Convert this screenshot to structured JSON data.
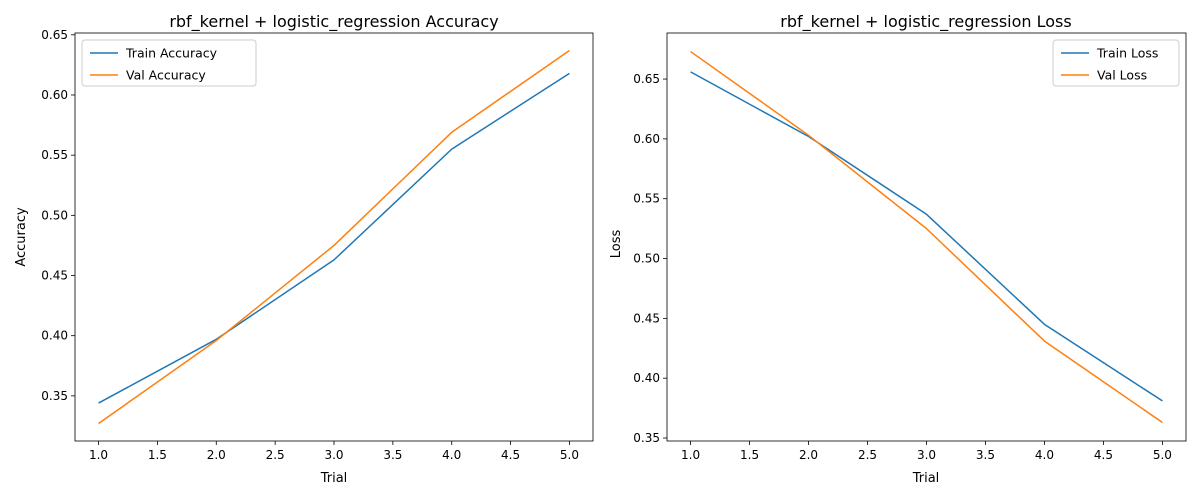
{
  "chart_data": [
    {
      "type": "line",
      "title": "rbf_kernel + logistic_regression Accuracy",
      "xlabel": "Trial",
      "ylabel": "Accuracy",
      "xlim": [
        0.8,
        5.2
      ],
      "ylim": [
        0.3125,
        0.6515
      ],
      "xticks": [
        1.0,
        1.5,
        2.0,
        2.5,
        3.0,
        3.5,
        4.0,
        4.5,
        5.0
      ],
      "xtick_labels": [
        "1.0",
        "1.5",
        "2.0",
        "2.5",
        "3.0",
        "3.5",
        "4.0",
        "4.5",
        "5.0"
      ],
      "yticks": [
        0.35,
        0.4,
        0.45,
        0.5,
        0.55,
        0.6,
        0.65
      ],
      "ytick_labels": [
        "0.35",
        "0.40",
        "0.45",
        "0.50",
        "0.55",
        "0.60",
        "0.65"
      ],
      "grid": false,
      "legend_position": "top-left",
      "x": [
        1,
        2,
        3,
        4,
        5
      ],
      "series": [
        {
          "name": "Train Accuracy",
          "color": "#1f77b4",
          "values": [
            0.344,
            0.397,
            0.463,
            0.555,
            0.618
          ]
        },
        {
          "name": "Val Accuracy",
          "color": "#ff7f0e",
          "values": [
            0.327,
            0.396,
            0.475,
            0.569,
            0.637
          ]
        }
      ]
    },
    {
      "type": "line",
      "title": "rbf_kernel + logistic_regression Loss",
      "xlabel": "Trial",
      "ylabel": "Loss",
      "xlim": [
        0.8,
        5.2
      ],
      "ylim": [
        0.3475,
        0.6885
      ],
      "xticks": [
        1.0,
        1.5,
        2.0,
        2.5,
        3.0,
        3.5,
        4.0,
        4.5,
        5.0
      ],
      "xtick_labels": [
        "1.0",
        "1.5",
        "2.0",
        "2.5",
        "3.0",
        "3.5",
        "4.0",
        "4.5",
        "5.0"
      ],
      "yticks": [
        0.35,
        0.4,
        0.45,
        0.5,
        0.55,
        0.6,
        0.65
      ],
      "ytick_labels": [
        "0.35",
        "0.40",
        "0.45",
        "0.50",
        "0.55",
        "0.60",
        "0.65"
      ],
      "grid": false,
      "legend_position": "top-right",
      "x": [
        1,
        2,
        3,
        4,
        5
      ],
      "series": [
        {
          "name": "Train Loss",
          "color": "#1f77b4",
          "values": [
            0.656,
            0.602,
            0.537,
            0.445,
            0.381
          ]
        },
        {
          "name": "Val Loss",
          "color": "#ff7f0e",
          "values": [
            0.673,
            0.603,
            0.525,
            0.431,
            0.363
          ]
        }
      ]
    }
  ]
}
